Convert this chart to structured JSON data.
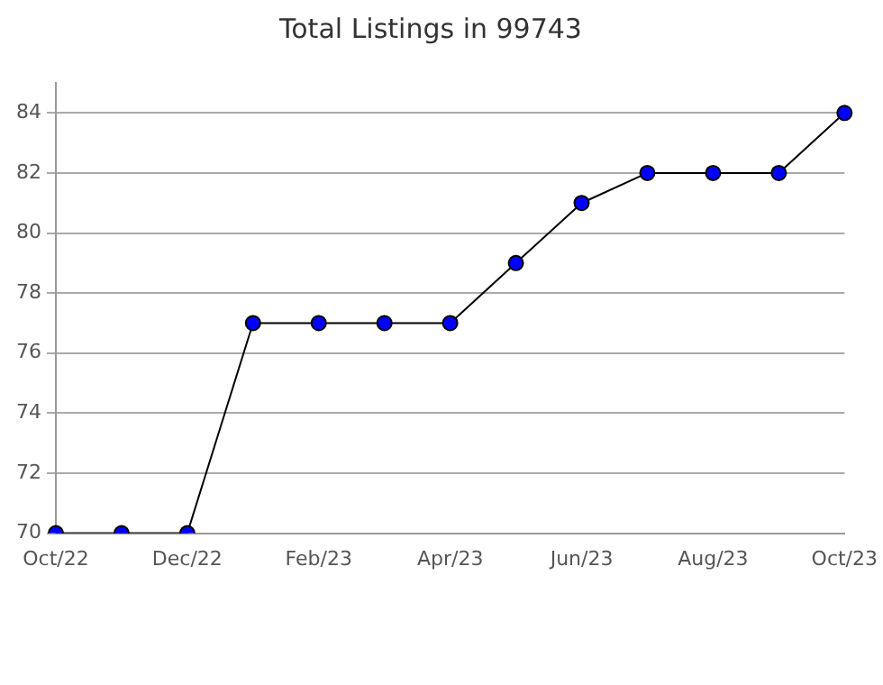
{
  "chart_data": {
    "type": "line",
    "title": "Total Listings in 99743",
    "categories": [
      "Oct/22",
      null,
      "Dec/22",
      null,
      "Feb/23",
      null,
      "Apr/23",
      null,
      "Jun/23",
      null,
      "Aug/23",
      null,
      "Oct/23"
    ],
    "series": [
      {
        "color": "#0000ff",
        "values": [
          70,
          70,
          70,
          77,
          77,
          77,
          77,
          79,
          81,
          82,
          82,
          82,
          84
        ]
      }
    ],
    "ylim": [
      70,
      85
    ],
    "yticks": [
      70,
      72,
      74,
      76,
      78,
      80,
      82,
      84
    ],
    "grid": "y",
    "legend": false,
    "marker": "circle",
    "line_style": "solid"
  }
}
